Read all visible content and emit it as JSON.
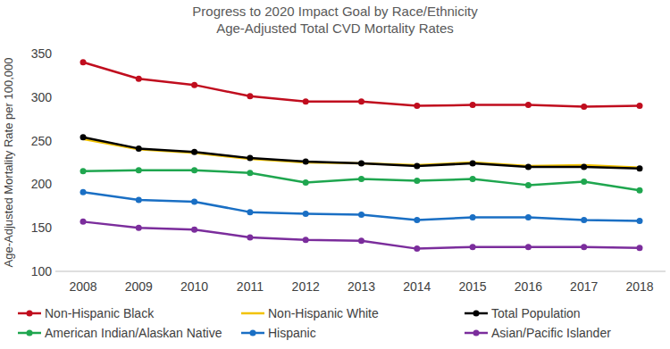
{
  "chart_data": {
    "type": "line",
    "title": "Progress to 2020 Impact Goal by Race/Ethnicity",
    "subtitle": "Age-Adjusted Total CVD Mortality Rates",
    "y_label": "Age-Adjusted Mortality Rate per 100,000",
    "categories": [
      "2008",
      "2009",
      "2010",
      "2011",
      "2012",
      "2013",
      "2014",
      "2015",
      "2016",
      "2017",
      "2018"
    ],
    "ylim": [
      100,
      350
    ],
    "yticks": [
      100,
      150,
      200,
      250,
      300,
      350
    ],
    "grid": false,
    "legend": "bottom",
    "series": [
      {
        "name": "Non-Hispanic Black",
        "color": "#c00d1e",
        "marker": "circle",
        "values": [
          340,
          321,
          314,
          301,
          295,
          295,
          290,
          291,
          291,
          289,
          290
        ]
      },
      {
        "name": "Non-Hispanic White",
        "color": "#f2c200",
        "marker": "none",
        "values": [
          252,
          240,
          236,
          229,
          225,
          224,
          222,
          225,
          221,
          222,
          219
        ]
      },
      {
        "name": "Total Population",
        "color": "#000000",
        "marker": "circle",
        "values": [
          254,
          241,
          237,
          230,
          226,
          224,
          221,
          224,
          220,
          220,
          218
        ]
      },
      {
        "name": "American Indian/Alaskan Native",
        "color": "#1fa64f",
        "marker": "circle",
        "values": [
          215,
          216,
          216,
          213,
          202,
          206,
          204,
          206,
          199,
          203,
          193
        ]
      },
      {
        "name": "Hispanic",
        "color": "#1a6fc4",
        "marker": "circle",
        "values": [
          191,
          182,
          180,
          168,
          166,
          165,
          159,
          162,
          162,
          159,
          158
        ]
      },
      {
        "name": "Asian/Pacific Islander",
        "color": "#7b2d9c",
        "marker": "circle",
        "values": [
          157,
          150,
          148,
          139,
          136,
          135,
          126,
          128,
          128,
          128,
          127
        ]
      }
    ]
  }
}
